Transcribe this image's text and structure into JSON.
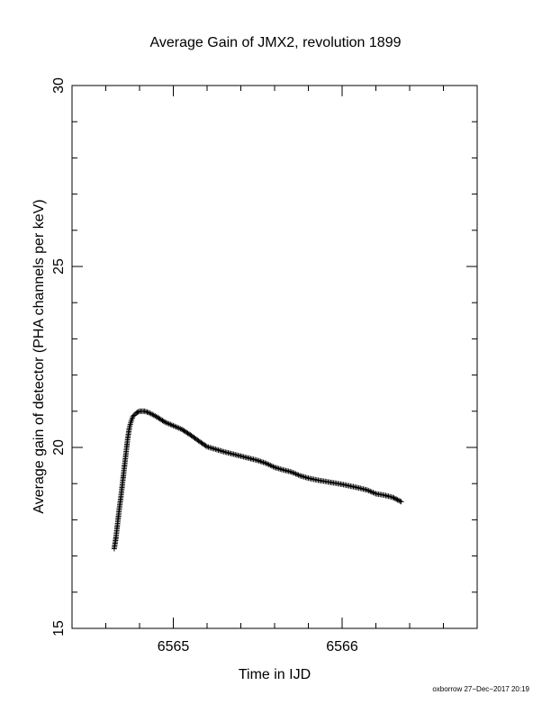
{
  "chart_data": {
    "type": "scatter",
    "title": "Average Gain of JMX2, revolution 1899",
    "xlabel": "Time in IJD",
    "ylabel": "Average gain of detector (PHA channels per keV)",
    "xlim": [
      6564.4,
      6566.8
    ],
    "ylim": [
      15,
      30
    ],
    "x_ticks": [
      6565,
      6566
    ],
    "x_minor_step": 0.2,
    "y_ticks": [
      15,
      20,
      25,
      30
    ],
    "y_minor_step": 1,
    "grid": false,
    "marker": "+",
    "marker_color": "#000000",
    "footer": "oxborrow 27−Dec−2017 20:19",
    "anchors": [
      [
        6564.65,
        17.2
      ],
      [
        6564.66,
        17.5
      ],
      [
        6564.67,
        17.9
      ],
      [
        6564.68,
        18.3
      ],
      [
        6564.69,
        18.65
      ],
      [
        6564.7,
        19.05
      ],
      [
        6564.71,
        19.45
      ],
      [
        6564.72,
        19.85
      ],
      [
        6564.73,
        20.25
      ],
      [
        6564.74,
        20.55
      ],
      [
        6564.75,
        20.72
      ],
      [
        6564.76,
        20.85
      ],
      [
        6564.78,
        20.95
      ],
      [
        6564.8,
        21.0
      ],
      [
        6564.83,
        21.0
      ],
      [
        6564.86,
        20.95
      ],
      [
        6564.9,
        20.85
      ],
      [
        6564.95,
        20.7
      ],
      [
        6565.0,
        20.6
      ],
      [
        6565.05,
        20.5
      ],
      [
        6565.1,
        20.35
      ],
      [
        6565.15,
        20.18
      ],
      [
        6565.2,
        20.02
      ],
      [
        6565.25,
        19.95
      ],
      [
        6565.3,
        19.88
      ],
      [
        6565.35,
        19.82
      ],
      [
        6565.4,
        19.76
      ],
      [
        6565.45,
        19.7
      ],
      [
        6565.5,
        19.64
      ],
      [
        6565.55,
        19.56
      ],
      [
        6565.6,
        19.45
      ],
      [
        6565.65,
        19.38
      ],
      [
        6565.7,
        19.32
      ],
      [
        6565.75,
        19.22
      ],
      [
        6565.8,
        19.15
      ],
      [
        6565.85,
        19.1
      ],
      [
        6565.9,
        19.06
      ],
      [
        6565.95,
        19.02
      ],
      [
        6566.0,
        18.98
      ],
      [
        6566.05,
        18.93
      ],
      [
        6566.1,
        18.88
      ],
      [
        6566.15,
        18.82
      ],
      [
        6566.2,
        18.72
      ],
      [
        6566.25,
        18.68
      ],
      [
        6566.3,
        18.62
      ],
      [
        6566.35,
        18.5
      ]
    ]
  }
}
